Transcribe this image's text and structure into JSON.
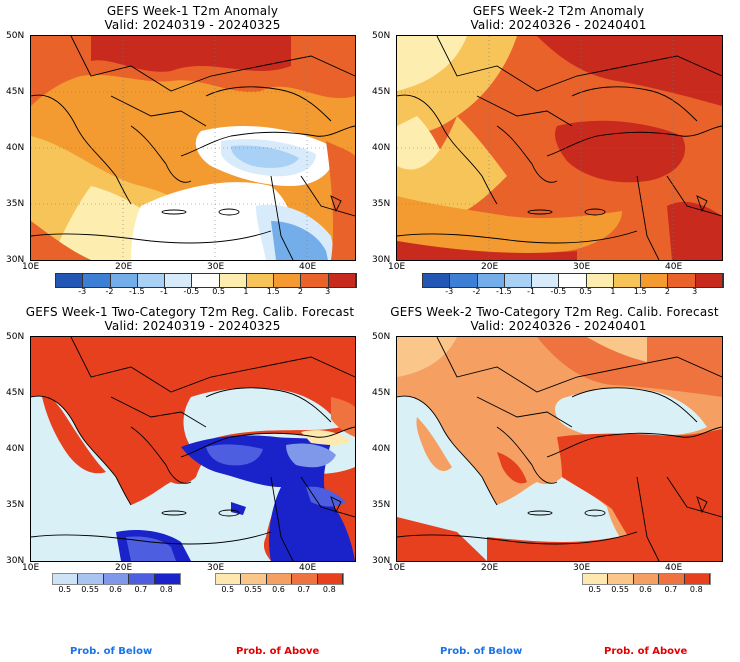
{
  "panels": [
    {
      "title": "GEFS Week-1 T2m Anomaly",
      "subtitle": "Valid: 20240319 - 20240325",
      "lat_labels": [
        "50N",
        "45N",
        "40N",
        "35N",
        "30N"
      ],
      "lon_labels": [
        "10E",
        "20E",
        "30E",
        "40E"
      ]
    },
    {
      "title": "GEFS Week-2 T2m Anomaly",
      "subtitle": "Valid: 20240326 - 20240401",
      "lat_labels": [
        "50N",
        "45N",
        "40N",
        "35N",
        "30N"
      ],
      "lon_labels": [
        "10E",
        "20E",
        "30E",
        "40E"
      ]
    },
    {
      "title": "GEFS Week-1 Two-Category T2m Reg. Calib. Forecast",
      "subtitle": "Valid: 20240319 - 20240325",
      "lat_labels": [
        "50N",
        "45N",
        "40N",
        "35N",
        "30N"
      ],
      "lon_labels": [
        "10E",
        "20E",
        "30E",
        "40E"
      ]
    },
    {
      "title": "GEFS Week-2 Two-Category T2m Reg. Calib. Forecast",
      "subtitle": "Valid: 20240326 - 20240401",
      "lat_labels": [
        "50N",
        "45N",
        "40N",
        "35N",
        "30N"
      ],
      "lon_labels": [
        "10E",
        "20E",
        "30E",
        "40E"
      ]
    }
  ],
  "anomaly_colorbar": {
    "ticks": [
      "-3",
      "-2",
      "-1.5",
      "-1",
      "-0.5",
      "0.5",
      "1",
      "1.5",
      "2",
      "3"
    ],
    "colors": [
      "#2357b5",
      "#3e7fd6",
      "#74aeea",
      "#a9d0f5",
      "#d8ebfb",
      "#ffffff",
      "#fdeeb0",
      "#f7c45a",
      "#f39a30",
      "#e8622a",
      "#c92a1e"
    ]
  },
  "below_colorbar": {
    "ticks": [
      "0.5",
      "0.55",
      "0.6",
      "0.7",
      "0.8"
    ],
    "colors": [
      "#cfe3f7",
      "#a9c4f0",
      "#7f98ea",
      "#4d5fe0",
      "#1a22c9"
    ]
  },
  "above_colorbar": {
    "ticks": [
      "0.5",
      "0.55",
      "0.6",
      "0.7",
      "0.8"
    ],
    "colors": [
      "#fde9b0",
      "#fac68a",
      "#f5a062",
      "#ef733e",
      "#e6401f"
    ]
  },
  "footer": {
    "below_label": "Prob. of Below",
    "above_label": "Prob. of Above",
    "below_color": "#1a73e8",
    "above_color": "#e60000"
  }
}
